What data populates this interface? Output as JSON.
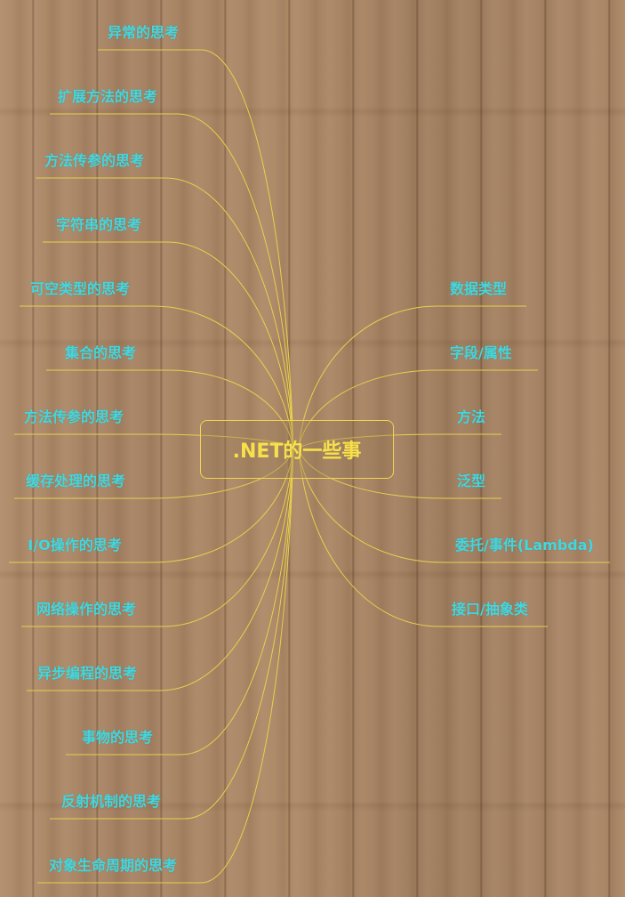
{
  "center": {
    "label": ".NET的一些事"
  },
  "left_branches": [
    {
      "label": "异常的思考"
    },
    {
      "label": "扩展方法的思考"
    },
    {
      "label": "方法传参的思考"
    },
    {
      "label": "字符串的思考"
    },
    {
      "label": "可空类型的思考"
    },
    {
      "label": "集合的思考"
    },
    {
      "label": "方法传参的思考"
    },
    {
      "label": "缓存处理的思考"
    },
    {
      "label": "I/O操作的思考"
    },
    {
      "label": "网络操作的思考"
    },
    {
      "label": "异步编程的思考"
    },
    {
      "label": "事物的思考"
    },
    {
      "label": "反射机制的思考"
    },
    {
      "label": "对象生命周期的思考"
    }
  ],
  "right_branches": [
    {
      "label": "数据类型"
    },
    {
      "label": "字段/属性"
    },
    {
      "label": "方法"
    },
    {
      "label": "泛型"
    },
    {
      "label": "委托/事件(Lambda)"
    },
    {
      "label": "接口/抽象类"
    }
  ],
  "colors": {
    "background": "#a88666",
    "connector": "#e8cf4e",
    "branch_text": "#40d8e0",
    "center_text": "#f7e04a",
    "center_border": "#f2d552"
  }
}
